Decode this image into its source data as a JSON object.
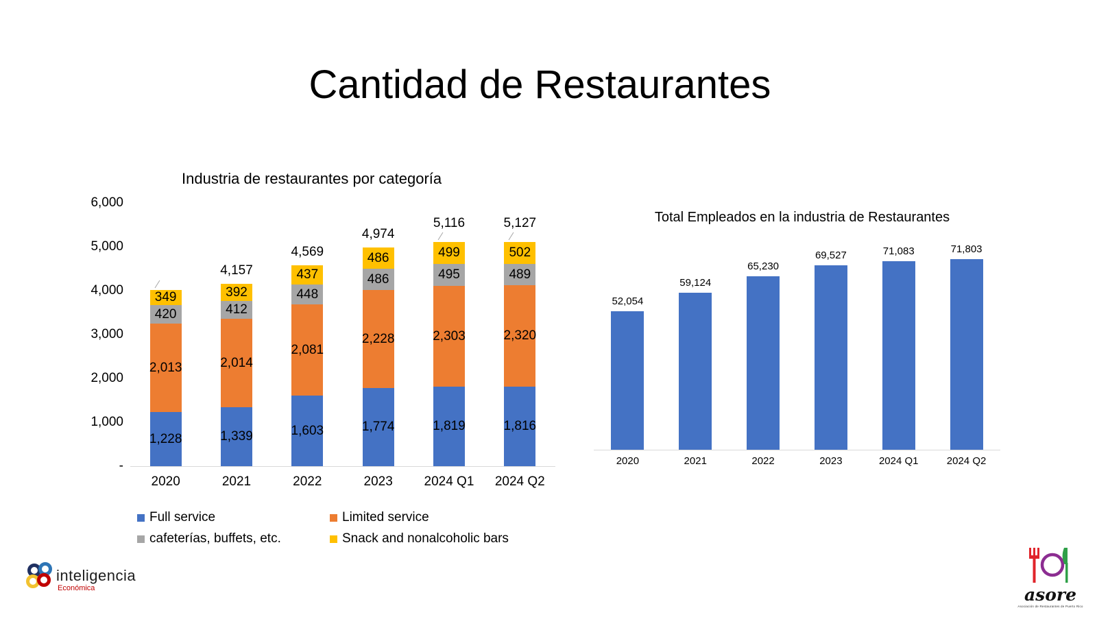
{
  "slide": {
    "title": "Cantidad de Restaurantes"
  },
  "chart_data": [
    {
      "type": "bar",
      "stacked": true,
      "title": "Industria de restaurantes por categoría",
      "categories": [
        "2020",
        "2021",
        "2022",
        "2023",
        "2024 Q1",
        "2024 Q2"
      ],
      "series": [
        {
          "name": "Full service",
          "color": "#4472C4",
          "values": [
            1228,
            1339,
            1603,
            1774,
            1819,
            1816
          ],
          "labels": [
            "1,228",
            "1,339",
            "1,603",
            "1,774",
            "1,819",
            "1,816"
          ]
        },
        {
          "name": "Limited service",
          "color": "#ED7D31",
          "values": [
            2013,
            2014,
            2081,
            2228,
            2303,
            2320
          ],
          "labels": [
            "2,013",
            "2,014",
            "2,081",
            "2,228",
            "2,303",
            "2,320"
          ]
        },
        {
          "name": "cafeterías, buffets, etc.",
          "color": "#A6A6A6",
          "values": [
            420,
            412,
            448,
            486,
            495,
            489
          ],
          "labels": [
            "420",
            "412",
            "448",
            "486",
            "495",
            "489"
          ]
        },
        {
          "name": "Snack and nonalcoholic bars",
          "color": "#FFC000",
          "values": [
            349,
            392,
            437,
            486,
            499,
            502
          ],
          "labels": [
            "349",
            "392",
            "437",
            "486",
            "499",
            "502"
          ]
        }
      ],
      "total_labels": [
        "",
        "4,157",
        "4,569",
        "4,974",
        "5,116",
        "5,127"
      ],
      "leader_lines": [
        true,
        false,
        false,
        false,
        true,
        true
      ],
      "ylim": [
        0,
        6000
      ],
      "yticks": [
        {
          "value": 6000,
          "label": "6,000"
        },
        {
          "value": 5000,
          "label": "5,000"
        },
        {
          "value": 4000,
          "label": "4,000"
        },
        {
          "value": 3000,
          "label": "3,000"
        },
        {
          "value": 2000,
          "label": "2,000"
        },
        {
          "value": 1000,
          "label": "1,000"
        },
        {
          "value": 0,
          "label": "-"
        }
      ],
      "grid": false,
      "legend_position": "bottom"
    },
    {
      "type": "bar",
      "title": "Total Empleados en la industria de Restaurantes",
      "categories": [
        "2020",
        "2021",
        "2022",
        "2023",
        "2024 Q1",
        "2024 Q2"
      ],
      "values": [
        52054,
        59124,
        65230,
        69527,
        71083,
        71803
      ],
      "labels": [
        "52,054",
        "59,124",
        "65,230",
        "69,527",
        "71,083",
        "71,803"
      ],
      "color": "#4472C4",
      "ylim": [
        0,
        72000
      ],
      "yaxis_visible": false,
      "grid": false,
      "legend_position": "none"
    }
  ],
  "footer": {
    "inteligencia": {
      "brand": "inteligencia",
      "sub": "Económica"
    },
    "asore": {
      "brand": "asore",
      "tagline": "Asociación de Restaurantes de Puerto Rico"
    }
  }
}
